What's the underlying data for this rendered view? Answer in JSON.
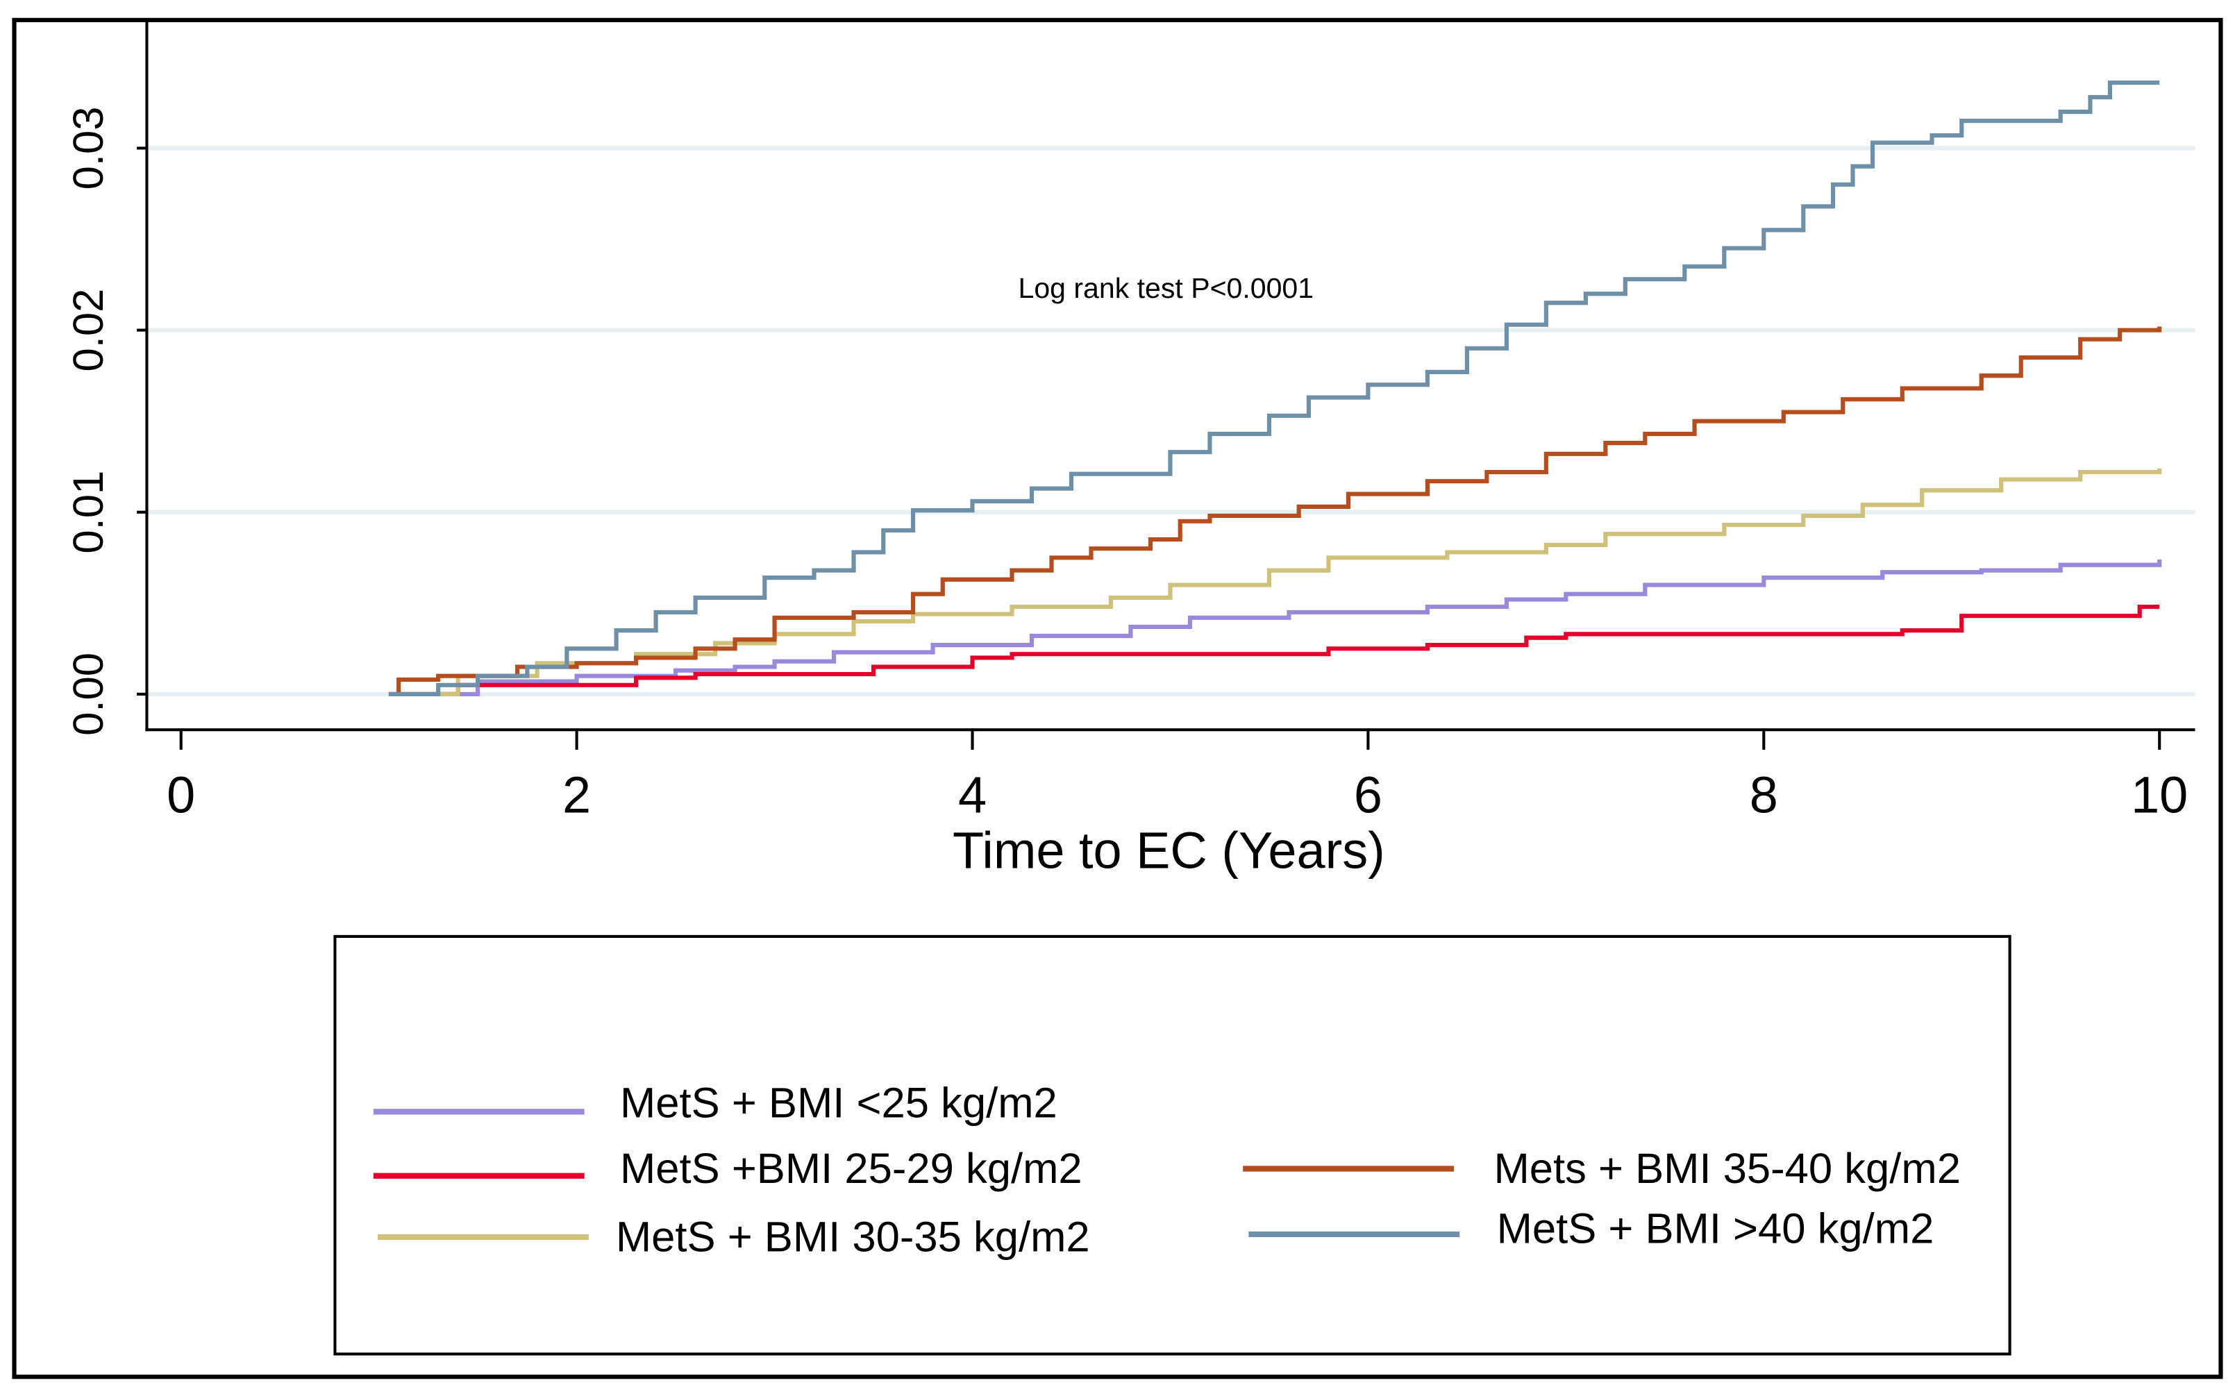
{
  "chart_data": {
    "type": "line",
    "title": "",
    "xlabel": "Time to EC (Years)",
    "ylabel": "",
    "xlim": [
      0,
      10
    ],
    "ylim": [
      0,
      0.0355
    ],
    "x_ticks": [
      "0",
      "2",
      "4",
      "6",
      "8",
      "10"
    ],
    "x_tick_values": [
      0,
      2,
      4,
      6,
      8,
      10
    ],
    "y_ticks": [
      "0.00",
      "0.01",
      "0.02",
      "0.03"
    ],
    "y_tick_values": [
      0,
      0.01,
      0.02,
      0.03
    ],
    "grid": "horizontal",
    "legend_position": "bottom",
    "annotation": "Log rank test P<0.0001",
    "step": true,
    "series": [
      {
        "name": "MetS + BMI <25 kg/m2",
        "color": "#9a88dc",
        "points": [
          [
            1.1,
            0
          ],
          [
            1.5,
            0.0007
          ],
          [
            2.0,
            0.001
          ],
          [
            2.5,
            0.0013
          ],
          [
            2.8,
            0.0015
          ],
          [
            3.0,
            0.0018
          ],
          [
            3.3,
            0.0023
          ],
          [
            3.8,
            0.0027
          ],
          [
            4.3,
            0.0032
          ],
          [
            4.8,
            0.0037
          ],
          [
            5.1,
            0.0042
          ],
          [
            5.6,
            0.0045
          ],
          [
            6.3,
            0.0048
          ],
          [
            6.7,
            0.0052
          ],
          [
            7.0,
            0.0055
          ],
          [
            7.4,
            0.006
          ],
          [
            8.0,
            0.0064
          ],
          [
            8.6,
            0.0067
          ],
          [
            9.1,
            0.0068
          ],
          [
            9.5,
            0.0071
          ],
          [
            10,
            0.0074
          ]
        ]
      },
      {
        "name": "MetS +BMI 25-29 kg/m2",
        "color": "#e4002b",
        "points": [
          [
            1.05,
            0
          ],
          [
            1.4,
            0.0005
          ],
          [
            2.3,
            0.0009
          ],
          [
            2.6,
            0.0011
          ],
          [
            3.5,
            0.0015
          ],
          [
            4.0,
            0.002
          ],
          [
            4.2,
            0.0022
          ],
          [
            5.8,
            0.0025
          ],
          [
            6.3,
            0.0027
          ],
          [
            6.8,
            0.0031
          ],
          [
            7.0,
            0.0033
          ],
          [
            8.7,
            0.0035
          ],
          [
            9.0,
            0.0043
          ],
          [
            9.9,
            0.0048
          ],
          [
            10,
            0.0048
          ]
        ]
      },
      {
        "name": "MetS + BMI 30-35 kg/m2",
        "color": "#cfc07a",
        "points": [
          [
            1.1,
            0
          ],
          [
            1.4,
            0.001
          ],
          [
            1.8,
            0.0017
          ],
          [
            2.3,
            0.0022
          ],
          [
            2.7,
            0.0028
          ],
          [
            3.0,
            0.0033
          ],
          [
            3.4,
            0.004
          ],
          [
            3.7,
            0.0044
          ],
          [
            4.2,
            0.0048
          ],
          [
            4.7,
            0.0053
          ],
          [
            5.0,
            0.006
          ],
          [
            5.5,
            0.0068
          ],
          [
            5.8,
            0.0075
          ],
          [
            6.4,
            0.0078
          ],
          [
            6.9,
            0.0082
          ],
          [
            7.2,
            0.0088
          ],
          [
            7.8,
            0.0093
          ],
          [
            8.2,
            0.0098
          ],
          [
            8.5,
            0.0104
          ],
          [
            8.8,
            0.0112
          ],
          [
            9.2,
            0.0118
          ],
          [
            9.6,
            0.0122
          ],
          [
            10,
            0.0124
          ]
        ]
      },
      {
        "name": "Mets + BMI 35-40 kg/m2",
        "color": "#b54d1e",
        "points": [
          [
            1.05,
            0
          ],
          [
            1.1,
            0.0008
          ],
          [
            1.3,
            0.001
          ],
          [
            1.7,
            0.0015
          ],
          [
            2.0,
            0.0017
          ],
          [
            2.3,
            0.002
          ],
          [
            2.6,
            0.0025
          ],
          [
            2.8,
            0.003
          ],
          [
            3.0,
            0.0042
          ],
          [
            3.4,
            0.0045
          ],
          [
            3.7,
            0.0055
          ],
          [
            3.85,
            0.0063
          ],
          [
            4.2,
            0.0068
          ],
          [
            4.4,
            0.0075
          ],
          [
            4.6,
            0.008
          ],
          [
            4.9,
            0.0085
          ],
          [
            5.05,
            0.0095
          ],
          [
            5.2,
            0.0098
          ],
          [
            5.65,
            0.0103
          ],
          [
            5.9,
            0.011
          ],
          [
            6.3,
            0.0117
          ],
          [
            6.6,
            0.0122
          ],
          [
            6.9,
            0.0132
          ],
          [
            7.2,
            0.0138
          ],
          [
            7.4,
            0.0143
          ],
          [
            7.65,
            0.015
          ],
          [
            8.1,
            0.0155
          ],
          [
            8.4,
            0.0162
          ],
          [
            8.7,
            0.0168
          ],
          [
            9.1,
            0.0175
          ],
          [
            9.3,
            0.0185
          ],
          [
            9.6,
            0.0195
          ],
          [
            9.8,
            0.02
          ],
          [
            10,
            0.0202
          ]
        ]
      },
      {
        "name": "MetS + BMI >40 kg/m2",
        "color": "#6e8fa8",
        "points": [
          [
            1.05,
            0
          ],
          [
            1.3,
            0.0005
          ],
          [
            1.5,
            0.001
          ],
          [
            1.75,
            0.0015
          ],
          [
            1.95,
            0.0025
          ],
          [
            2.2,
            0.0035
          ],
          [
            2.4,
            0.0045
          ],
          [
            2.6,
            0.0053
          ],
          [
            2.95,
            0.0064
          ],
          [
            3.2,
            0.0068
          ],
          [
            3.4,
            0.0078
          ],
          [
            3.55,
            0.009
          ],
          [
            3.7,
            0.0101
          ],
          [
            4.0,
            0.0106
          ],
          [
            4.3,
            0.0113
          ],
          [
            4.5,
            0.0121
          ],
          [
            5.0,
            0.0133
          ],
          [
            5.2,
            0.0143
          ],
          [
            5.5,
            0.0153
          ],
          [
            5.7,
            0.0163
          ],
          [
            6.0,
            0.017
          ],
          [
            6.3,
            0.0177
          ],
          [
            6.5,
            0.019
          ],
          [
            6.7,
            0.0203
          ],
          [
            6.9,
            0.0215
          ],
          [
            7.1,
            0.022
          ],
          [
            7.3,
            0.0228
          ],
          [
            7.6,
            0.0235
          ],
          [
            7.8,
            0.0245
          ],
          [
            8.0,
            0.0255
          ],
          [
            8.2,
            0.0268
          ],
          [
            8.35,
            0.028
          ],
          [
            8.45,
            0.029
          ],
          [
            8.55,
            0.0303
          ],
          [
            8.85,
            0.0307
          ],
          [
            9.0,
            0.0315
          ],
          [
            9.5,
            0.032
          ],
          [
            9.65,
            0.0328
          ],
          [
            9.75,
            0.0336
          ],
          [
            10,
            0.0336
          ]
        ]
      }
    ]
  }
}
